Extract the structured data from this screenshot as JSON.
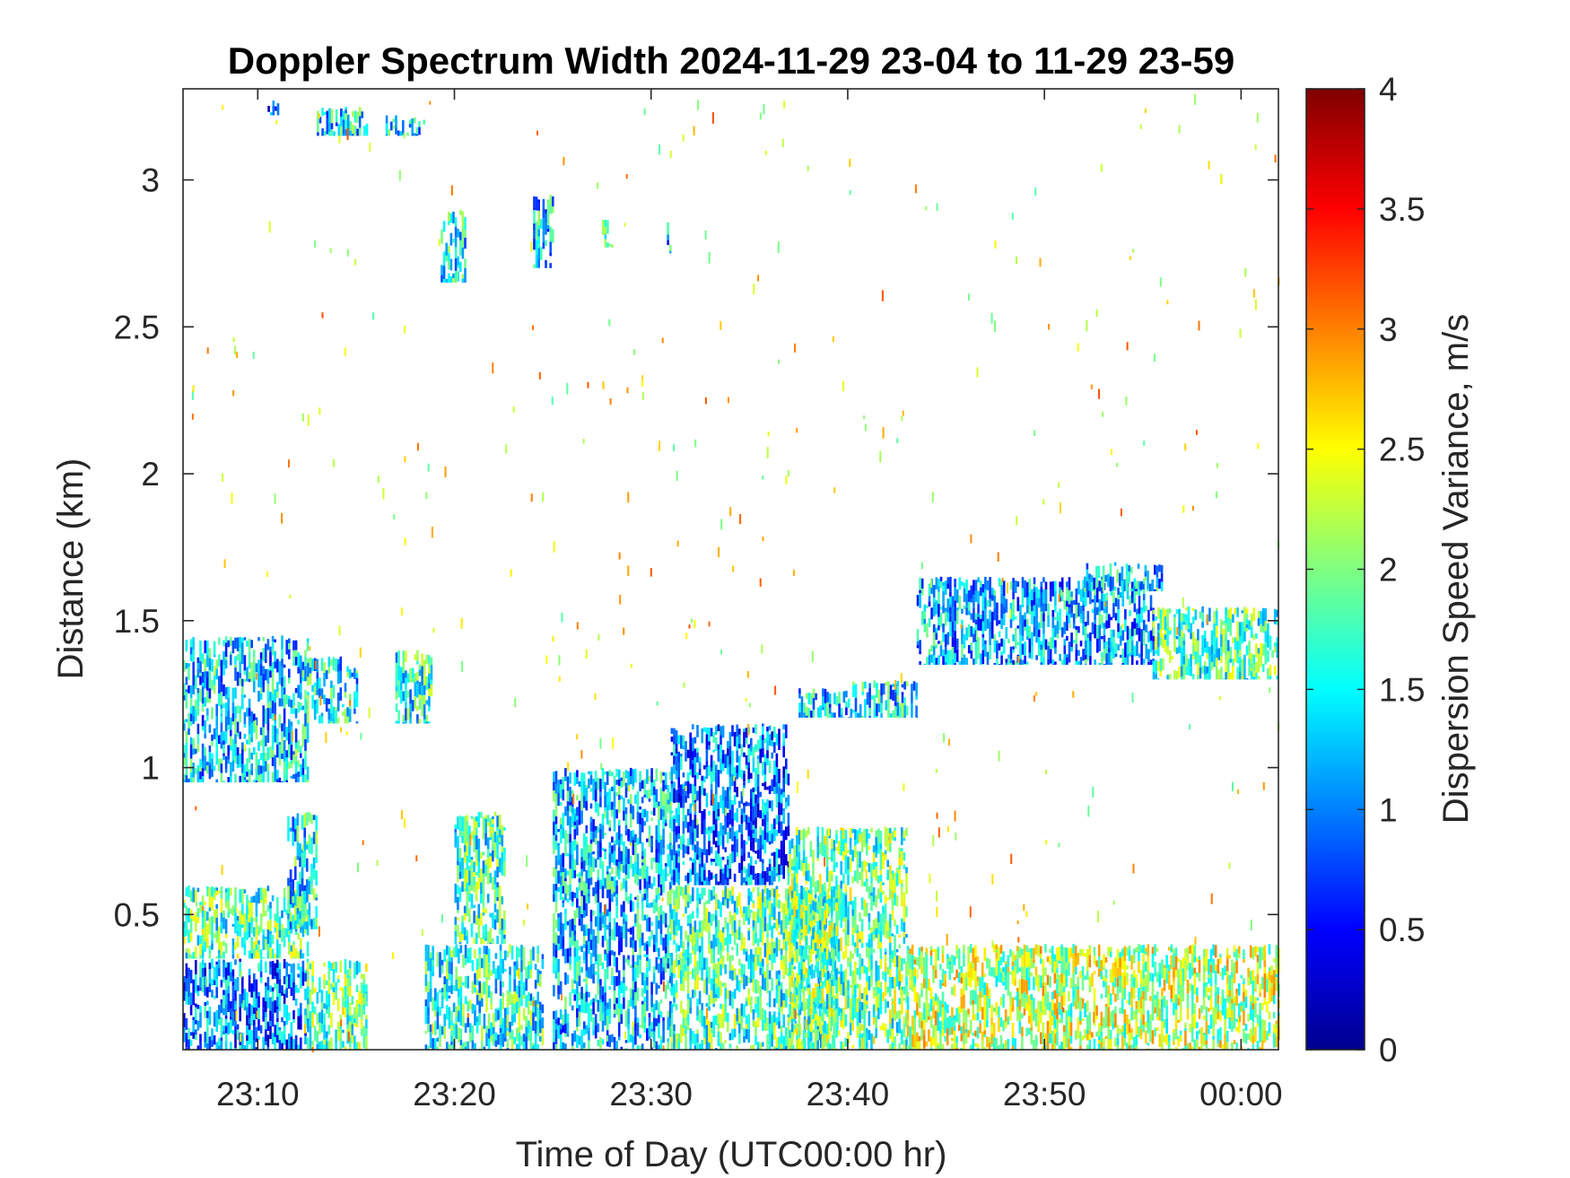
{
  "chart_data": {
    "type": "heatmap",
    "title": "Doppler Spectrum Width 2024-11-29 23-04 to 11-29 23-59",
    "xlabel": "Time of Day (UTC00:00 hr)",
    "ylabel": "Distance (km)",
    "colorbar_label": "Dispersion Speed Variance, m/s",
    "colormap": "jet",
    "colormap_colors": [
      "#00008f",
      "#0000ff",
      "#0080ff",
      "#00ffff",
      "#80ff80",
      "#ffff00",
      "#ff8000",
      "#ff0000",
      "#800000"
    ],
    "x_ticks": [
      {
        "minutes": 10,
        "label": "23:10"
      },
      {
        "minutes": 20,
        "label": "23:20"
      },
      {
        "minutes": 30,
        "label": "23:30"
      },
      {
        "minutes": 40,
        "label": "23:40"
      },
      {
        "minutes": 50,
        "label": "23:50"
      },
      {
        "minutes": 60,
        "label": "00:00"
      }
    ],
    "y_ticks": [
      {
        "value": 0.5,
        "label": "0.5"
      },
      {
        "value": 1,
        "label": "1"
      },
      {
        "value": 1.5,
        "label": "1.5"
      },
      {
        "value": 2,
        "label": "2"
      },
      {
        "value": 2.5,
        "label": "2.5"
      },
      {
        "value": 3,
        "label": "3"
      }
    ],
    "colorbar_ticks": [
      {
        "value": 0,
        "label": "0"
      },
      {
        "value": 0.5,
        "label": "0.5"
      },
      {
        "value": 1,
        "label": "1"
      },
      {
        "value": 1.5,
        "label": "1.5"
      },
      {
        "value": 2,
        "label": "2"
      },
      {
        "value": 2.5,
        "label": "2.5"
      },
      {
        "value": 3,
        "label": "3"
      },
      {
        "value": 3.5,
        "label": "3.5"
      },
      {
        "value": 4,
        "label": "4"
      }
    ],
    "xlim_minutes_after_23_00": [
      6.2,
      61.9
    ],
    "ylim": [
      0.04,
      3.31
    ],
    "clim": [
      0,
      4
    ],
    "grid": false,
    "regions": [
      {
        "t": [
          6.2,
          12.5
        ],
        "r": [
          0.95,
          1.45
        ],
        "value": 1.3
      },
      {
        "t": [
          12.5,
          15.0
        ],
        "r": [
          1.15,
          1.38
        ],
        "value": 1.4
      },
      {
        "t": [
          17.0,
          18.8
        ],
        "r": [
          1.15,
          1.4
        ],
        "value": 1.6
      },
      {
        "t": [
          6.2,
          12.5
        ],
        "r": [
          0.04,
          0.35
        ],
        "value": 1.0
      },
      {
        "t": [
          6.2,
          12.5
        ],
        "r": [
          0.35,
          0.6
        ],
        "value": 1.8
      },
      {
        "t": [
          12.5,
          15.5
        ],
        "r": [
          0.04,
          0.35
        ],
        "value": 1.9
      },
      {
        "t": [
          18.5,
          24.5
        ],
        "r": [
          0.04,
          0.4
        ],
        "value": 1.6
      },
      {
        "t": [
          20.0,
          22.5
        ],
        "r": [
          0.4,
          0.85
        ],
        "value": 1.7
      },
      {
        "t": [
          11.5,
          13.0
        ],
        "r": [
          0.45,
          0.85
        ],
        "value": 1.5
      },
      {
        "t": [
          25.0,
          31.0
        ],
        "r": [
          0.04,
          1.0
        ],
        "value": 1.3
      },
      {
        "t": [
          31.0,
          37.0
        ],
        "r": [
          0.6,
          1.15
        ],
        "value": 1.0
      },
      {
        "t": [
          31.0,
          39.5
        ],
        "r": [
          0.04,
          0.6
        ],
        "value": 1.8
      },
      {
        "t": [
          37.0,
          43.0
        ],
        "r": [
          0.04,
          0.8
        ],
        "value": 1.9
      },
      {
        "t": [
          37.5,
          40.0
        ],
        "r": [
          1.17,
          1.27
        ],
        "value": 1.3
      },
      {
        "t": [
          40.0,
          43.5
        ],
        "r": [
          1.17,
          1.3
        ],
        "value": 1.4
      },
      {
        "t": [
          43.5,
          55.5
        ],
        "r": [
          1.35,
          1.65
        ],
        "value": 1.2
      },
      {
        "t": [
          55.5,
          61.9
        ],
        "r": [
          1.3,
          1.55
        ],
        "value": 1.8
      },
      {
        "t": [
          52.0,
          56.0
        ],
        "r": [
          1.6,
          1.7
        ],
        "value": 1.3
      },
      {
        "t": [
          43.0,
          61.9
        ],
        "r": [
          0.04,
          0.4
        ],
        "value": 2.2
      },
      {
        "t": [
          10.5,
          11.0
        ],
        "r": [
          3.22,
          3.27
        ],
        "value": 0.8
      },
      {
        "t": [
          13.0,
          15.5
        ],
        "r": [
          3.15,
          3.25
        ],
        "value": 1.4
      },
      {
        "t": [
          16.5,
          18.5
        ],
        "r": [
          3.15,
          3.22
        ],
        "value": 1.4
      },
      {
        "t": [
          19.3,
          20.5
        ],
        "r": [
          2.65,
          2.9
        ],
        "value": 1.5
      },
      {
        "t": [
          24.0,
          25.0
        ],
        "r": [
          2.7,
          2.95
        ],
        "value": 1.3
      },
      {
        "t": [
          27.5,
          28.0
        ],
        "r": [
          2.77,
          2.88
        ],
        "value": 1.5
      },
      {
        "t": [
          30.8,
          31.0
        ],
        "r": [
          2.75,
          2.88
        ],
        "value": 1.3
      }
    ]
  }
}
